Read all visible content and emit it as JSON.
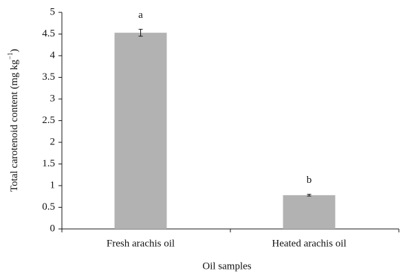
{
  "chart_data": {
    "type": "bar",
    "y_label": {
      "text": "Total carotenoid content (mg kg",
      "sup": "−1",
      "end": ")"
    },
    "x_label": "Oil samples",
    "categories": [
      "Fresh arachis oil",
      "Heated arachis oil"
    ],
    "values": [
      4.53,
      0.78
    ],
    "errors": [
      0.08,
      0.02
    ],
    "annotations": [
      "a",
      "b"
    ],
    "color": "#b2b2b2",
    "ylim": [
      0,
      5
    ],
    "yticks": [
      0,
      0.5,
      1,
      1.5,
      2,
      2.5,
      3,
      3.5,
      4,
      4.5,
      5
    ]
  }
}
